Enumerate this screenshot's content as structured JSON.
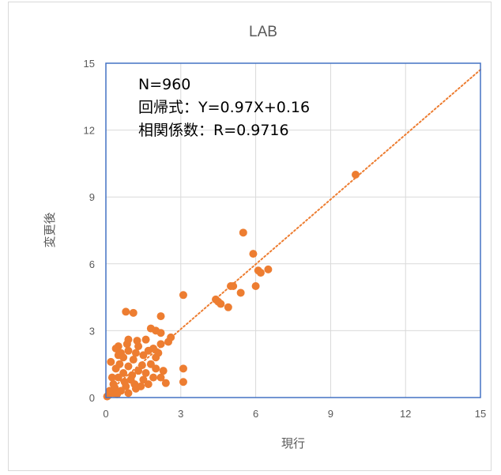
{
  "chart_data": {
    "type": "scatter",
    "title": "LAB",
    "xlabel": "現行",
    "ylabel": "変更後",
    "xlim": [
      0,
      15
    ],
    "ylim": [
      0,
      15
    ],
    "xticks": [
      "0",
      "3",
      "6",
      "9",
      "12",
      "15"
    ],
    "yticks": [
      "0",
      "3",
      "6",
      "9",
      "12",
      "15"
    ],
    "grid": true,
    "marker_color": "#ED7D31",
    "trendline": {
      "slope": 0.97,
      "intercept": 0.16,
      "style": "dotted",
      "color": "#ED7D31"
    },
    "annotations": [
      "N=960",
      "回帰式：Y=0.97X+0.16",
      "相関係数：R=0.9716"
    ],
    "points": [
      {
        "x": 10.0,
        "y": 10.0
      },
      {
        "x": 5.5,
        "y": 7.4
      },
      {
        "x": 5.9,
        "y": 6.45
      },
      {
        "x": 6.1,
        "y": 5.7
      },
      {
        "x": 6.2,
        "y": 5.6
      },
      {
        "x": 6.5,
        "y": 5.75
      },
      {
        "x": 6.0,
        "y": 5.0
      },
      {
        "x": 5.0,
        "y": 5.0
      },
      {
        "x": 5.1,
        "y": 5.0
      },
      {
        "x": 5.4,
        "y": 4.7
      },
      {
        "x": 4.4,
        "y": 4.4
      },
      {
        "x": 4.5,
        "y": 4.3
      },
      {
        "x": 4.6,
        "y": 4.2
      },
      {
        "x": 4.9,
        "y": 4.05
      },
      {
        "x": 3.1,
        "y": 4.6
      },
      {
        "x": 2.2,
        "y": 3.65
      },
      {
        "x": 0.8,
        "y": 3.85
      },
      {
        "x": 1.1,
        "y": 3.8
      },
      {
        "x": 1.8,
        "y": 3.1
      },
      {
        "x": 2.0,
        "y": 3.0
      },
      {
        "x": 2.2,
        "y": 2.9
      },
      {
        "x": 2.6,
        "y": 2.7
      },
      {
        "x": 2.5,
        "y": 2.5
      },
      {
        "x": 2.2,
        "y": 2.4
      },
      {
        "x": 1.9,
        "y": 2.2
      },
      {
        "x": 1.6,
        "y": 2.6
      },
      {
        "x": 0.9,
        "y": 2.6
      },
      {
        "x": 0.5,
        "y": 2.3
      },
      {
        "x": 0.4,
        "y": 2.2
      },
      {
        "x": 2.0,
        "y": 1.8
      },
      {
        "x": 3.1,
        "y": 1.3
      },
      {
        "x": 3.1,
        "y": 0.7
      },
      {
        "x": 2.4,
        "y": 0.65
      },
      {
        "x": 2.2,
        "y": 0.9
      },
      {
        "x": 2.0,
        "y": 1.3
      },
      {
        "x": 1.8,
        "y": 1.5
      },
      {
        "x": 1.7,
        "y": 0.6
      },
      {
        "x": 1.5,
        "y": 0.8
      },
      {
        "x": 1.2,
        "y": 0.4
      },
      {
        "x": 0.6,
        "y": 2.0
      },
      {
        "x": 0.9,
        "y": 2.1
      },
      {
        "x": 1.3,
        "y": 2.3
      },
      {
        "x": 1.5,
        "y": 1.9
      },
      {
        "x": 0.2,
        "y": 1.6
      },
      {
        "x": 0.3,
        "y": 0.2
      },
      {
        "x": 0.1,
        "y": 0.1
      },
      {
        "x": 0.05,
        "y": 0.05
      },
      {
        "x": 0.15,
        "y": 0.3
      },
      {
        "x": 0.3,
        "y": 0.6
      },
      {
        "x": 0.5,
        "y": 0.9
      },
      {
        "x": 0.7,
        "y": 1.1
      },
      {
        "x": 0.9,
        "y": 1.4
      },
      {
        "x": 1.1,
        "y": 1.7
      },
      {
        "x": 1.3,
        "y": 1.2
      },
      {
        "x": 1.0,
        "y": 0.8
      },
      {
        "x": 0.8,
        "y": 0.5
      },
      {
        "x": 0.6,
        "y": 0.3
      },
      {
        "x": 1.4,
        "y": 0.5
      },
      {
        "x": 1.6,
        "y": 1.1
      },
      {
        "x": 0.4,
        "y": 1.3
      },
      {
        "x": 0.7,
        "y": 1.8
      },
      {
        "x": 1.2,
        "y": 2.0
      },
      {
        "x": 1.7,
        "y": 2.1
      },
      {
        "x": 2.1,
        "y": 2.0
      },
      {
        "x": 1.9,
        "y": 0.9
      },
      {
        "x": 0.25,
        "y": 0.9
      },
      {
        "x": 0.45,
        "y": 0.15
      },
      {
        "x": 0.9,
        "y": 0.2
      },
      {
        "x": 1.05,
        "y": 1.0
      },
      {
        "x": 0.55,
        "y": 1.5
      },
      {
        "x": 1.45,
        "y": 1.45
      },
      {
        "x": 2.3,
        "y": 1.2
      },
      {
        "x": 0.35,
        "y": 0.45
      },
      {
        "x": 0.75,
        "y": 0.7
      },
      {
        "x": 1.15,
        "y": 0.6
      },
      {
        "x": 0.85,
        "y": 2.4
      },
      {
        "x": 1.25,
        "y": 2.55
      },
      {
        "x": 0.5,
        "y": 1.9
      }
    ]
  }
}
